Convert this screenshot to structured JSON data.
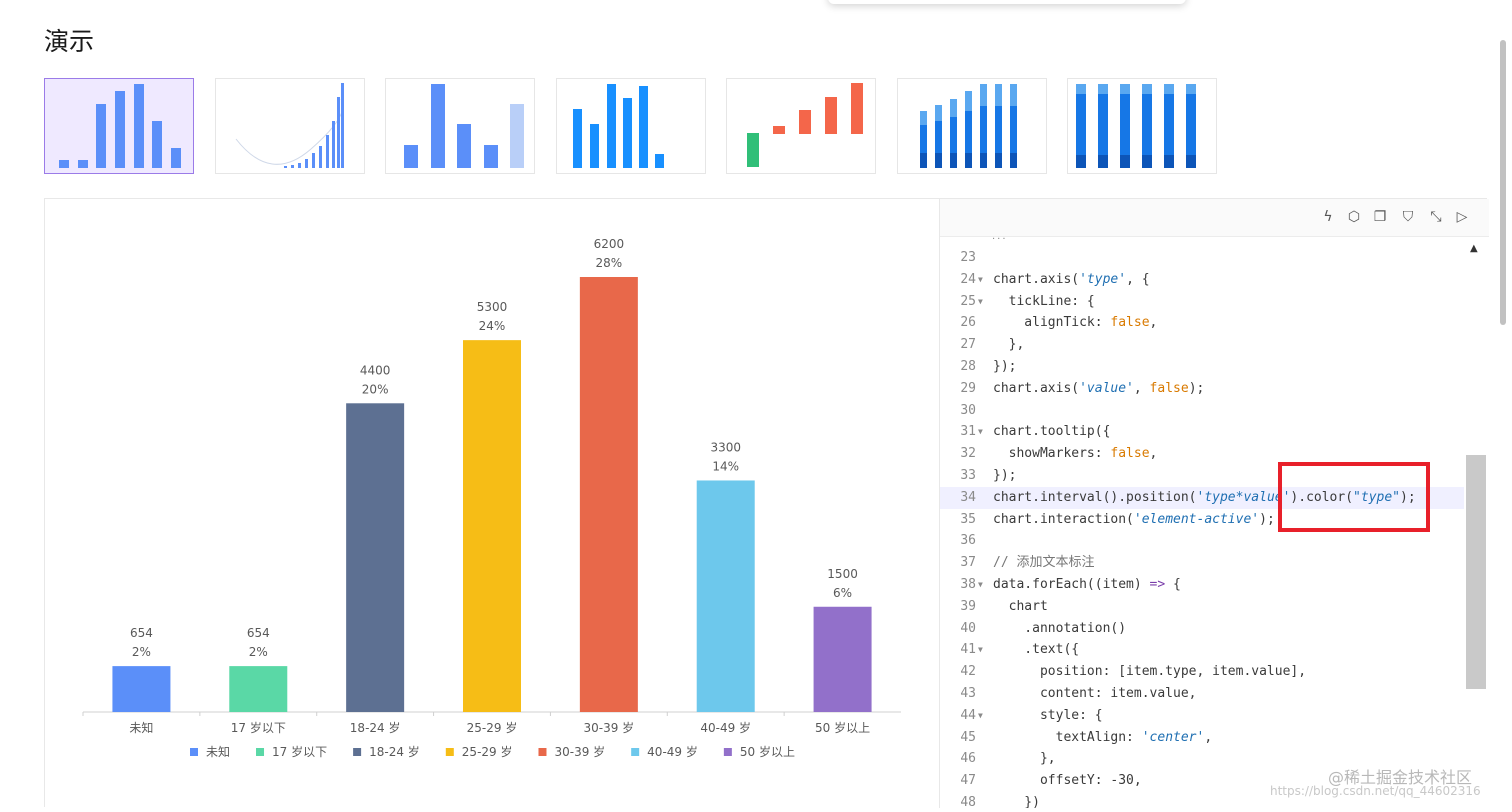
{
  "page_title": "演示",
  "watermark": "@稀土掘金技术社区",
  "watermark_url": "https://blog.csdn.net/qq_44602316",
  "thumbnails": [
    {
      "name": "basic-bar"
    },
    {
      "name": "line-bar"
    },
    {
      "name": "simple-bar"
    },
    {
      "name": "blue-bar"
    },
    {
      "name": "waterfall"
    },
    {
      "name": "stacked-bar"
    },
    {
      "name": "percent-stacked"
    }
  ],
  "chart_data": {
    "type": "bar",
    "categories": [
      "未知",
      "17 岁以下",
      "18-24 岁",
      "25-29 岁",
      "30-39 岁",
      "40-49 岁",
      "50 岁以上"
    ],
    "values": [
      654,
      654,
      4400,
      5300,
      6200,
      3300,
      1500
    ],
    "percents": [
      "2%",
      "2%",
      "20%",
      "24%",
      "28%",
      "14%",
      "6%"
    ],
    "colors": [
      "#5b8ff9",
      "#5ad8a6",
      "#5d7092",
      "#f6bd16",
      "#e8684a",
      "#6dc8ec",
      "#9270ca"
    ],
    "ylim": [
      0,
      6200
    ],
    "legend": "bottom"
  },
  "toolbar": [
    "lightning-icon",
    "cube-icon",
    "copy-icon",
    "html-icon",
    "fullscreen-icon",
    "play-icon"
  ],
  "code_lines": [
    {
      "n": "23",
      "fold": "",
      "html": ""
    },
    {
      "n": "24",
      "fold": "▼",
      "html": "chart.axis(<span class='s'>'type'</span>, {"
    },
    {
      "n": "25",
      "fold": "▼",
      "html": "  tickLine: {"
    },
    {
      "n": "26",
      "fold": "",
      "html": "    alignTick: <span class='b'>false</span>,"
    },
    {
      "n": "27",
      "fold": "",
      "html": "  },"
    },
    {
      "n": "28",
      "fold": "",
      "html": "});"
    },
    {
      "n": "29",
      "fold": "",
      "html": "chart.axis(<span class='s'>'value'</span>, <span class='b'>false</span>);"
    },
    {
      "n": "30",
      "fold": "",
      "html": ""
    },
    {
      "n": "31",
      "fold": "▼",
      "html": "chart.tooltip({"
    },
    {
      "n": "32",
      "fold": "",
      "html": "  showMarkers: <span class='b'>false</span>,"
    },
    {
      "n": "33",
      "fold": "",
      "html": "});"
    },
    {
      "n": "34",
      "fold": "",
      "html": "chart.interval().position(<span class='s'>'type*value'</span>).color(<span class='s'>\"type\"</span>);"
    },
    {
      "n": "35",
      "fold": "",
      "html": "chart.interaction(<span class='s'>'element-active'</span>);"
    },
    {
      "n": "36",
      "fold": "",
      "html": ""
    },
    {
      "n": "37",
      "fold": "",
      "html": "<span class='c'>// 添加文本标注</span>"
    },
    {
      "n": "38",
      "fold": "▼",
      "html": "data.forEach((item) <span class='k'>=></span> {"
    },
    {
      "n": "39",
      "fold": "",
      "html": "  chart"
    },
    {
      "n": "40",
      "fold": "",
      "html": "    .annotation()"
    },
    {
      "n": "41",
      "fold": "▼",
      "html": "    .text({"
    },
    {
      "n": "42",
      "fold": "",
      "html": "      position: [item.type, item.value],"
    },
    {
      "n": "43",
      "fold": "",
      "html": "      content: item.value,"
    },
    {
      "n": "44",
      "fold": "▼",
      "html": "      style: {"
    },
    {
      "n": "45",
      "fold": "",
      "html": "        textAlign: <span class='s'>'center'</span>,"
    },
    {
      "n": "46",
      "fold": "",
      "html": "      },"
    },
    {
      "n": "47",
      "fold": "",
      "html": "      offsetY: -30,"
    },
    {
      "n": "48",
      "fold": "",
      "html": "    })"
    }
  ]
}
